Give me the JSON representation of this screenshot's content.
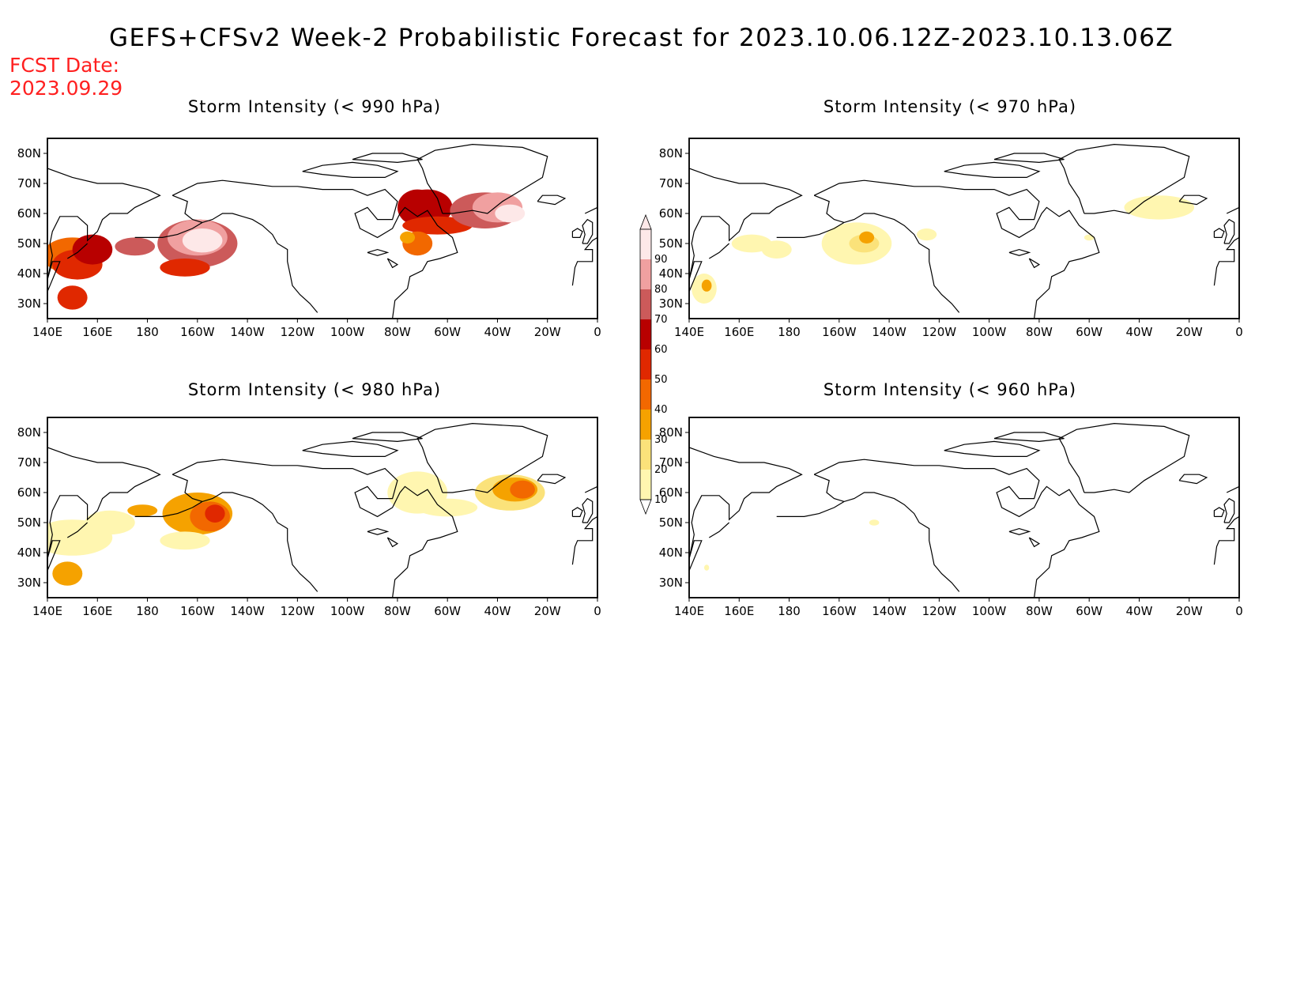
{
  "title": "GEFS+CFSv2 Week-2 Probabilistic Forecast for 2023.10.06.12Z-2023.10.13.06Z",
  "fcst_label": "FCST Date:",
  "fcst_date": "2023.09.29",
  "lat_ticks": [
    "80N",
    "70N",
    "60N",
    "50N",
    "40N",
    "30N"
  ],
  "lon_ticks": [
    "140E",
    "160E",
    "180",
    "160W",
    "140W",
    "120W",
    "100W",
    "80W",
    "60W",
    "40W",
    "20W",
    "0"
  ],
  "panels": [
    {
      "id": "p990",
      "title": "Storm Intensity (< 990 hPa)"
    },
    {
      "id": "p970",
      "title": "Storm Intensity (< 970 hPa)"
    },
    {
      "id": "p980",
      "title": "Storm Intensity (< 980 hPa)"
    },
    {
      "id": "p960",
      "title": "Storm Intensity (< 960 hPa)"
    }
  ],
  "colorbar": {
    "levels": [
      "10",
      "20",
      "30",
      "40",
      "50",
      "60",
      "70",
      "80",
      "90"
    ],
    "colors": [
      "#fff6b0",
      "#fbe27a",
      "#f5a200",
      "#f26800",
      "#e02800",
      "#b80000",
      "#cc5a5a",
      "#f0a0a0",
      "#fde8e8"
    ]
  }
}
